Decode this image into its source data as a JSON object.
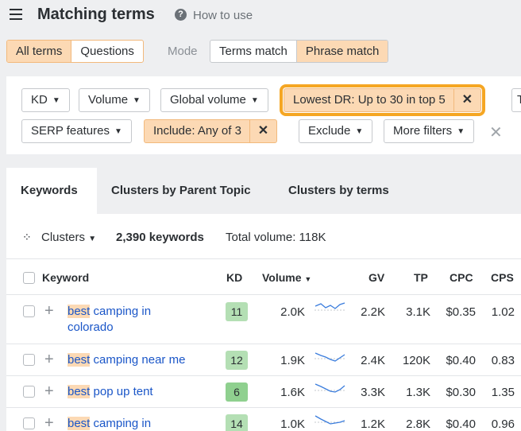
{
  "header": {
    "title": "Matching terms",
    "help_icon": "question-circle-icon",
    "help_text": "How to use"
  },
  "terms_toggle": {
    "options": [
      "All terms",
      "Questions"
    ],
    "selected": "All terms"
  },
  "mode": {
    "label": "Mode",
    "options": [
      "Terms match",
      "Phrase match"
    ],
    "selected": "Phrase match"
  },
  "filters": {
    "row1": [
      "KD",
      "Volume",
      "Global volume"
    ],
    "active_dr": "Lowest DR: Up to 30 in top 5",
    "row1_cut": "T",
    "serp": "SERP features",
    "include": "Include: Any of 3",
    "exclude": "Exclude",
    "more": "More filters"
  },
  "tabs": [
    "Keywords",
    "Clusters by Parent Topic",
    "Clusters by terms"
  ],
  "stats": {
    "clusters": "Clusters",
    "keywords": "2,390 keywords",
    "total": "Total volume: 118K"
  },
  "table": {
    "headers": {
      "keyword": "Keyword",
      "kd": "KD",
      "volume": "Volume",
      "gv": "GV",
      "tp": "TP",
      "cpc": "CPC",
      "cps": "CPS"
    },
    "rows": [
      {
        "hl": "best",
        "rest": " camping in",
        "line2": "colorado",
        "kd": "11",
        "volume": "2.0K",
        "gv": "2.2K",
        "tp": "3.1K",
        "cpc": "$0.35",
        "cps": "1.02"
      },
      {
        "hl": "best",
        "rest": " camping near me",
        "line2": "",
        "kd": "12",
        "volume": "1.9K",
        "gv": "2.4K",
        "tp": "120K",
        "cpc": "$0.40",
        "cps": "0.83"
      },
      {
        "hl": "best",
        "rest": " pop up tent",
        "line2": "",
        "kd": "6",
        "volume": "1.6K",
        "gv": "3.3K",
        "tp": "1.3K",
        "cpc": "$0.30",
        "cps": "1.35"
      },
      {
        "hl": "best",
        "rest": " camping in",
        "line2": "",
        "kd": "14",
        "volume": "1.0K",
        "gv": "1.2K",
        "tp": "2.8K",
        "cpc": "$0.40",
        "cps": "0.96"
      }
    ]
  },
  "colors": {
    "accent_orange": "#fcd9b4",
    "highlight_outline": "#f5a623",
    "link_blue": "#1a56c8",
    "kd_green": "#b4dfb4"
  }
}
